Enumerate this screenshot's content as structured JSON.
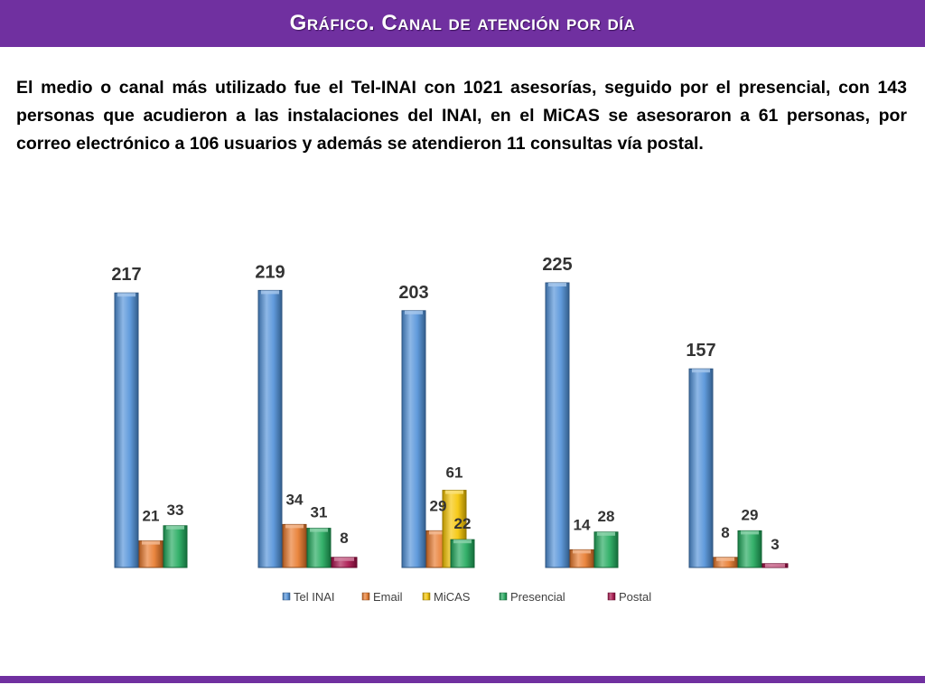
{
  "header": {
    "title": "Gráfico. Canal de atención por día"
  },
  "body": {
    "paragraph": "El medio o canal más utilizado fue el Tel-INAI con 1021 asesorías, seguido por el presencial, con 143 personas que acudieron a las instalaciones del INAI, en el MiCAS se asesoraron a 61 personas, por correo electrónico a 106 usuarios y además se atendieron 11 consultas vía postal."
  },
  "chart_data": {
    "type": "bar",
    "title": "",
    "xlabel": "",
    "ylabel": "",
    "ylim": [
      0,
      230
    ],
    "grid": false,
    "legend_position": "bottom",
    "categories": [
      "",
      "",
      "",
      "",
      ""
    ],
    "series": [
      {
        "name": "Tel INAI",
        "color": "#4f90d8",
        "values": [
          217,
          219,
          203,
          225,
          157
        ]
      },
      {
        "name": "Email",
        "color": "#e8782a",
        "values": [
          21,
          34,
          29,
          14,
          8
        ]
      },
      {
        "name": "MiCAS",
        "color": "#f5c400",
        "values": [
          null,
          null,
          61,
          null,
          null
        ]
      },
      {
        "name": "Presencial",
        "color": "#1fa85a",
        "values": [
          33,
          31,
          22,
          28,
          29
        ]
      },
      {
        "name": "Postal",
        "color": "#a8104a",
        "values": [
          null,
          8,
          null,
          null,
          3
        ]
      }
    ]
  }
}
